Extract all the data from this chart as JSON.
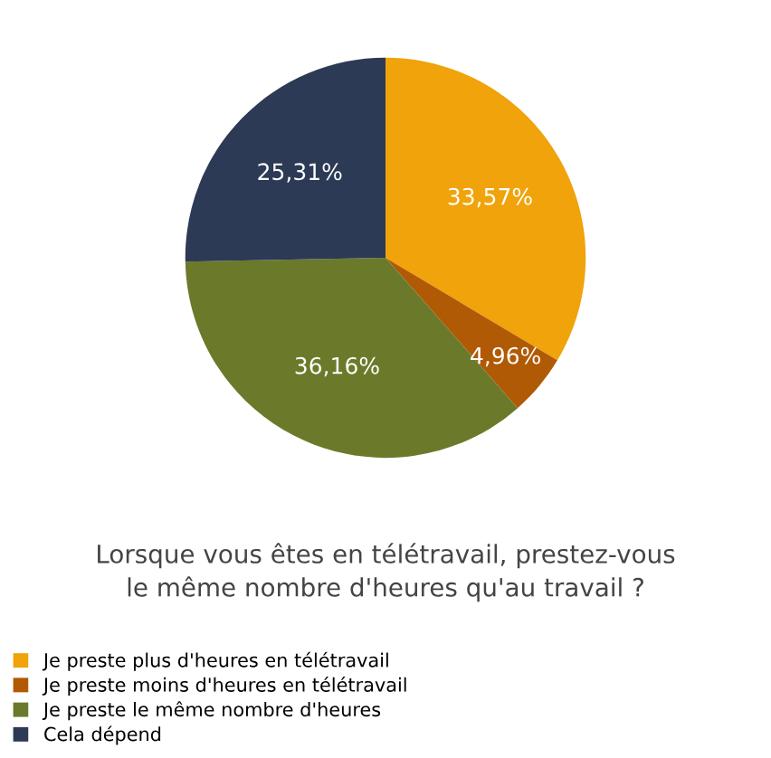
{
  "chart_data": {
    "type": "pie",
    "title": "Lorsque vous êtes en télétravail, prestez-vous\nle même nombre d'heures qu'au travail ?",
    "categories": [
      "Je preste plus d'heures en télétravail",
      "Je preste moins d'heures en télétravail",
      "Je preste le même nombre d'heures",
      "Cela dépend"
    ],
    "values": [
      33.57,
      4.96,
      36.16,
      25.31
    ],
    "colors": [
      "#f0a30a",
      "#b05a06",
      "#6b7a2a",
      "#2c3a55"
    ],
    "value_labels": [
      "33,57%",
      "4,96%",
      "36,16%",
      "25,31%"
    ],
    "legend": "bottom"
  }
}
